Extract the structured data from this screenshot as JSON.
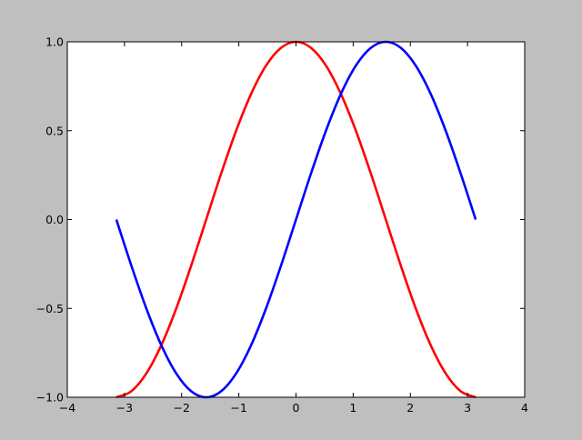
{
  "chart_data": {
    "type": "line",
    "title": "",
    "xlabel": "",
    "ylabel": "",
    "xlim": [
      -4,
      4
    ],
    "ylim": [
      -1,
      1
    ],
    "grid": false,
    "xticks": [
      -4,
      -3,
      -2,
      -1,
      0,
      1,
      2,
      3,
      4
    ],
    "xtick_labels": [
      "−4",
      "−3",
      "−2",
      "−1",
      "0",
      "1",
      "2",
      "3",
      "4"
    ],
    "yticks": [
      -1.0,
      -0.5,
      0.0,
      0.5,
      1.0
    ],
    "ytick_labels": [
      "−1.0",
      "−0.5",
      "0.0",
      "0.5",
      "1.0"
    ],
    "x": [
      -3.142,
      -2.88,
      -2.618,
      -2.356,
      -2.094,
      -1.833,
      -1.571,
      -1.309,
      -1.047,
      -0.785,
      -0.524,
      -0.262,
      0,
      0.262,
      0.524,
      0.785,
      1.047,
      1.309,
      1.571,
      1.833,
      2.094,
      2.356,
      2.618,
      2.88,
      3.142
    ],
    "series": [
      {
        "color": "#ff0000",
        "values": [
          -1,
          -0.966,
          -0.866,
          -0.707,
          -0.5,
          -0.259,
          0,
          0.259,
          0.5,
          0.707,
          0.866,
          0.966,
          1,
          0.966,
          0.866,
          0.707,
          0.5,
          0.259,
          0,
          -0.259,
          -0.5,
          -0.707,
          -0.866,
          -0.966,
          -1
        ]
      },
      {
        "color": "#0000ff",
        "values": [
          0,
          -0.259,
          -0.5,
          -0.707,
          -0.866,
          -0.966,
          -1,
          -0.966,
          -0.866,
          -0.707,
          -0.5,
          -0.259,
          0,
          0.259,
          0.5,
          0.707,
          0.866,
          0.966,
          1,
          0.966,
          0.866,
          0.707,
          0.5,
          0.259,
          0
        ]
      }
    ]
  }
}
